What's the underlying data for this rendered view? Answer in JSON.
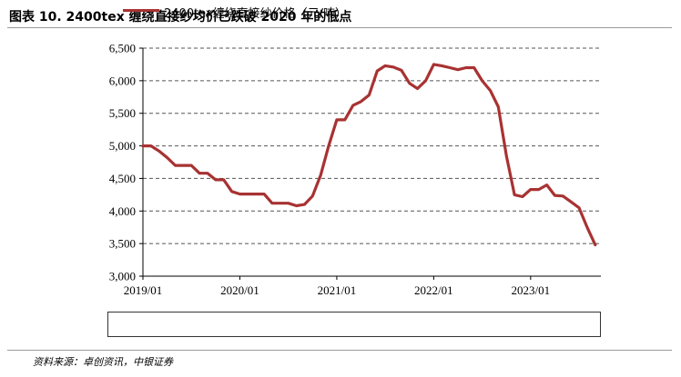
{
  "title": "图表 10. 2400tex 缠绕直接纱均价已跌破 2020 年的低点",
  "source": "资料来源：卓创资讯，中银证券",
  "colors": {
    "series": "#a83232",
    "grid": "#555555",
    "axis": "#000000"
  },
  "chart_data": {
    "type": "line",
    "title": "图表 10. 2400tex 缠绕直接纱均价已跌破 2020 年的低点",
    "ylim": [
      3000,
      6500
    ],
    "yticks": [
      "3,000",
      "3,500",
      "4,000",
      "4,500",
      "5,000",
      "5,500",
      "6,000",
      "6,500"
    ],
    "ytick_values": [
      3000,
      3500,
      4000,
      4500,
      5000,
      5500,
      6000,
      6500
    ],
    "xticks": [
      "2019/01",
      "2020/01",
      "2021/01",
      "2022/01",
      "2023/01"
    ],
    "x_range": [
      "2019/01",
      "2023/09"
    ],
    "grid": "horizontal dashed",
    "legend": "bottom",
    "series": [
      {
        "name": "2400tex缠绕直接纱价格（元/吨）",
        "color": "#a83232",
        "points": [
          [
            "2019/01",
            5000
          ],
          [
            "2019/02",
            5000
          ],
          [
            "2019/03",
            4920
          ],
          [
            "2019/04",
            4820
          ],
          [
            "2019/05",
            4700
          ],
          [
            "2019/07",
            4700
          ],
          [
            "2019/08",
            4580
          ],
          [
            "2019/09",
            4580
          ],
          [
            "2019/10",
            4480
          ],
          [
            "2019/11",
            4480
          ],
          [
            "2019/12",
            4300
          ],
          [
            "2020/01",
            4260
          ],
          [
            "2020/03",
            4260
          ],
          [
            "2020/04",
            4260
          ],
          [
            "2020/05",
            4120
          ],
          [
            "2020/06",
            4120
          ],
          [
            "2020/07",
            4120
          ],
          [
            "2020/08",
            4080
          ],
          [
            "2020/09",
            4100
          ],
          [
            "2020/10",
            4230
          ],
          [
            "2020/11",
            4550
          ],
          [
            "2020/12",
            5000
          ],
          [
            "2021/01",
            5400
          ],
          [
            "2021/02",
            5400
          ],
          [
            "2021/03",
            5620
          ],
          [
            "2021/04",
            5680
          ],
          [
            "2021/05",
            5780
          ],
          [
            "2021/06",
            6150
          ],
          [
            "2021/07",
            6230
          ],
          [
            "2021/08",
            6210
          ],
          [
            "2021/09",
            6160
          ],
          [
            "2021/10",
            5960
          ],
          [
            "2021/11",
            5880
          ],
          [
            "2021/12",
            6000
          ],
          [
            "2022/01",
            6250
          ],
          [
            "2022/02",
            6230
          ],
          [
            "2022/03",
            6200
          ],
          [
            "2022/04",
            6170
          ],
          [
            "2022/05",
            6200
          ],
          [
            "2022/06",
            6200
          ],
          [
            "2022/07",
            6000
          ],
          [
            "2022/08",
            5850
          ],
          [
            "2022/09",
            5600
          ],
          [
            "2022/10",
            4850
          ],
          [
            "2022/11",
            4250
          ],
          [
            "2022/12",
            4220
          ],
          [
            "2023/01",
            4330
          ],
          [
            "2023/02",
            4330
          ],
          [
            "2023/03",
            4400
          ],
          [
            "2023/04",
            4240
          ],
          [
            "2023/05",
            4230
          ],
          [
            "2023/06",
            4140
          ],
          [
            "2023/07",
            4050
          ],
          [
            "2023/08",
            3750
          ],
          [
            "2023/09",
            3480
          ]
        ]
      }
    ]
  }
}
